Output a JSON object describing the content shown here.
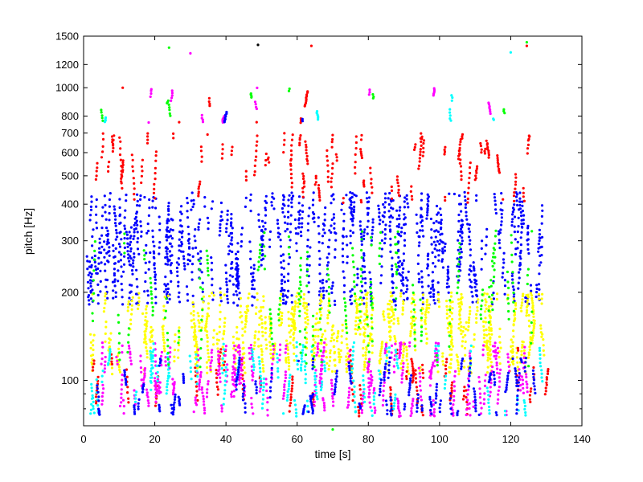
{
  "chart_data": {
    "type": "scatter",
    "title": "",
    "xlabel": "time [s]",
    "ylabel": "pitch [Hz]",
    "xlim": [
      0,
      140
    ],
    "ylim": [
      70,
      1500
    ],
    "y_scale": "log",
    "grid": false,
    "legend": "none",
    "x_ticks": [
      0,
      20,
      40,
      60,
      80,
      100,
      120,
      140
    ],
    "x_tick_labels": [
      "0",
      "20",
      "40",
      "60",
      "80",
      "100",
      "120",
      "140"
    ],
    "y_ticks": [
      100,
      200,
      300,
      400,
      500,
      600,
      700,
      800,
      1000,
      1200,
      1500
    ],
    "y_tick_labels": [
      "100",
      "200",
      "300",
      "400",
      "500",
      "600",
      "700",
      "800",
      "1000",
      "1200",
      "1500"
    ],
    "series": [
      {
        "color": "#0000ff",
        "x_range": [
          1,
          129.5
        ],
        "y_range": [
          180,
          440
        ],
        "count": 1400
      },
      {
        "color": "#ffff00",
        "x_range": [
          2,
          129
        ],
        "y_range": [
          105,
          200
        ],
        "count": 1100
      },
      {
        "color": "#ff0000",
        "x_range": [
          1,
          130
        ],
        "y_range": [
          400,
          700
        ],
        "count": 330
      },
      {
        "color": "#ff0000",
        "x_range": [
          1,
          130
        ],
        "y_range": [
          75,
          130
        ],
        "count": 200
      },
      {
        "color": "#ff00ff",
        "x_range": [
          1,
          129
        ],
        "y_range": [
          75,
          135
        ],
        "count": 600
      },
      {
        "color": "#00ffff",
        "x_range": [
          1,
          129
        ],
        "y_range": [
          75,
          135
        ],
        "count": 300
      },
      {
        "color": "#00ff00",
        "x_range": [
          1,
          129
        ],
        "y_range": [
          110,
          330
        ],
        "count": 300
      },
      {
        "color": "#0000ff",
        "x_range": [
          1,
          129
        ],
        "y_range": [
          76,
          120
        ],
        "count": 300
      },
      {
        "color": "#ff00ff",
        "x_range": [
          3,
          128
        ],
        "y_range": [
          750,
          1000
        ],
        "count": 40
      },
      {
        "color": "#00ff00",
        "x_range": [
          3,
          128
        ],
        "y_range": [
          750,
          1000
        ],
        "count": 25
      },
      {
        "color": "#00ffff",
        "x_range": [
          3,
          128
        ],
        "y_range": [
          750,
          1000
        ],
        "count": 20
      },
      {
        "color": "#ff0000",
        "x_range": [
          3,
          128
        ],
        "y_range": [
          750,
          1000
        ],
        "count": 20
      },
      {
        "color": "#0000ff",
        "x_range": [
          3,
          128
        ],
        "y_range": [
          750,
          1000
        ],
        "count": 10
      }
    ],
    "outliers": [
      {
        "x": 24,
        "y": 1370,
        "color": "#00ff00"
      },
      {
        "x": 30,
        "y": 1310,
        "color": "#ff00ff"
      },
      {
        "x": 49,
        "y": 1400,
        "color": "#000000"
      },
      {
        "x": 64,
        "y": 1390,
        "color": "#ff0000"
      },
      {
        "x": 120,
        "y": 1320,
        "color": "#00ffff"
      },
      {
        "x": 124.5,
        "y": 1430,
        "color": "#00ff00"
      },
      {
        "x": 124.5,
        "y": 1390,
        "color": "#ff0000"
      },
      {
        "x": 70,
        "y": 68,
        "color": "#00ff00"
      }
    ]
  }
}
